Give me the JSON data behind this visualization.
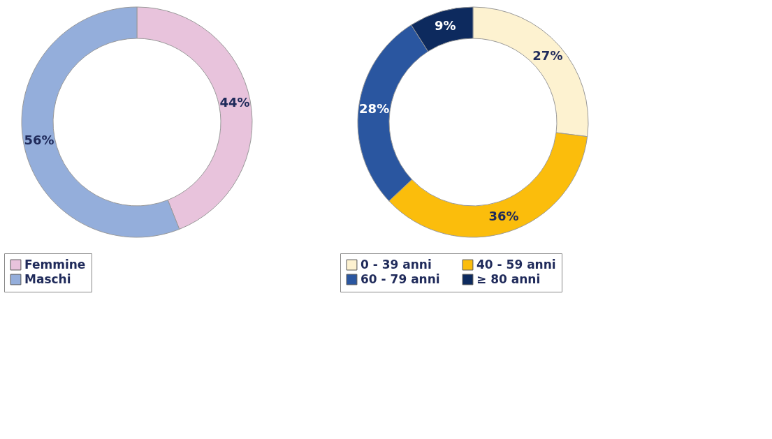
{
  "chart_data": [
    {
      "type": "donut",
      "categories": [
        "Femmine",
        "Maschi"
      ],
      "values": [
        44,
        56
      ],
      "colors": [
        "#e8c3dc",
        "#94aedb"
      ],
      "value_labels": [
        "44%",
        "56%"
      ],
      "legend": "bottom"
    },
    {
      "type": "donut",
      "categories": [
        "0 - 39 anni",
        "40 - 59 anni",
        "60 - 79 anni",
        "≥ 80 anni"
      ],
      "values": [
        27,
        36,
        28,
        9
      ],
      "colors": [
        "#fdf2d0",
        "#fbbd0c",
        "#2a56a0",
        "#0d2a5e"
      ],
      "value_labels": [
        "27%",
        "36%",
        "28%",
        "9%"
      ],
      "legend": "bottom"
    }
  ]
}
